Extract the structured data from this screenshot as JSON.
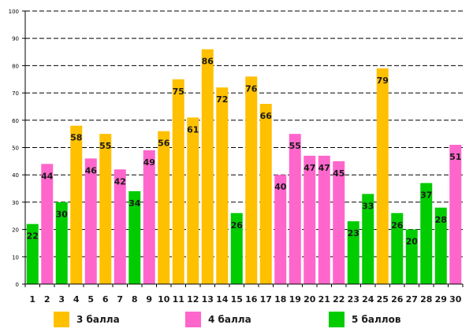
{
  "chart_data": {
    "type": "bar",
    "title": "",
    "xlabel": "",
    "ylabel": "",
    "ylim": [
      0,
      100
    ],
    "yticks": [
      "0",
      "10",
      "20",
      "30",
      "40",
      "50",
      "60",
      "70",
      "80",
      "90",
      "100"
    ],
    "categories": [
      "1",
      "2",
      "3",
      "4",
      "5",
      "6",
      "7",
      "8",
      "9",
      "10",
      "11",
      "12",
      "13",
      "14",
      "15",
      "16",
      "17",
      "18",
      "19",
      "20",
      "21",
      "22",
      "23",
      "24",
      "25",
      "26",
      "27",
      "28",
      "29",
      "30"
    ],
    "values": [
      22,
      44,
      30,
      58,
      46,
      55,
      42,
      34,
      49,
      56,
      75,
      61,
      86,
      72,
      26,
      76,
      66,
      40,
      55,
      47,
      47,
      45,
      23,
      33,
      79,
      26,
      20,
      37,
      28,
      51
    ],
    "groups": [
      "g5",
      "g4",
      "g5",
      "g3",
      "g4",
      "g3",
      "g4",
      "g5",
      "g4",
      "g3",
      "g3",
      "g3",
      "g3",
      "g3",
      "g5",
      "g3",
      "g3",
      "g4",
      "g4",
      "g4",
      "g4",
      "g4",
      "g5",
      "g5",
      "g3",
      "g5",
      "g5",
      "g5",
      "g5",
      "g4"
    ],
    "legend": [
      {
        "id": "g3",
        "label": "3 балла",
        "color": "#FFC000"
      },
      {
        "id": "g4",
        "label": "4 балла",
        "color": "#FF66CC"
      },
      {
        "id": "g5",
        "label": "5 баллов",
        "color": "#00CC00"
      }
    ],
    "grid": true
  }
}
